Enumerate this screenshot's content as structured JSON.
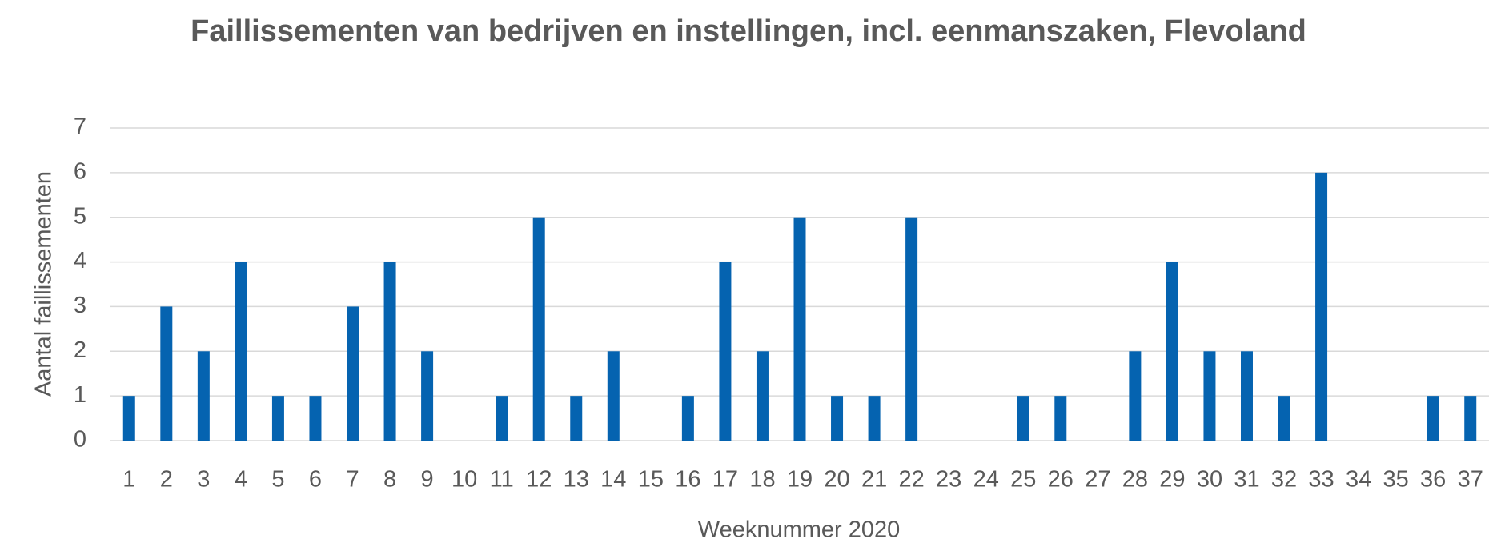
{
  "chart_data": {
    "type": "bar",
    "title": "Faillissementen van bedrijven en instellingen, incl. eenmanszaken, Flevoland",
    "x_label": "Weeknummer 2020",
    "y_label": "Aantal faillissementen",
    "categories": [
      "1",
      "2",
      "3",
      "4",
      "5",
      "6",
      "7",
      "8",
      "9",
      "10",
      "11",
      "12",
      "13",
      "14",
      "15",
      "16",
      "17",
      "18",
      "19",
      "20",
      "21",
      "22",
      "23",
      "24",
      "25",
      "26",
      "27",
      "28",
      "29",
      "30",
      "31",
      "32",
      "33",
      "34",
      "35",
      "36",
      "37"
    ],
    "values": [
      1,
      3,
      2,
      4,
      1,
      1,
      3,
      4,
      2,
      0,
      1,
      5,
      1,
      2,
      0,
      1,
      4,
      2,
      5,
      1,
      1,
      5,
      0,
      0,
      1,
      1,
      0,
      2,
      4,
      2,
      2,
      1,
      6,
      0,
      0,
      1,
      1
    ],
    "color": "#0563b0",
    "ylim": [
      0,
      7
    ],
    "yticks": [
      0,
      1,
      2,
      3,
      4,
      5,
      6,
      7
    ],
    "grid": true
  }
}
